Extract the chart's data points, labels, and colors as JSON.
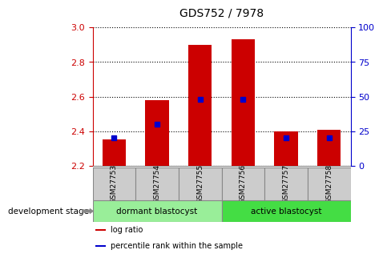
{
  "title": "GDS752 / 7978",
  "samples": [
    "GSM27753",
    "GSM27754",
    "GSM27755",
    "GSM27756",
    "GSM27757",
    "GSM27758"
  ],
  "log_ratios": [
    2.352,
    2.578,
    2.9,
    2.93,
    2.397,
    2.41
  ],
  "percentile_ranks": [
    20,
    30,
    48,
    48,
    20,
    20
  ],
  "ymin": 2.2,
  "ymax": 3.0,
  "yticks_left": [
    2.2,
    2.4,
    2.6,
    2.8,
    3.0
  ],
  "yticks_right": [
    0,
    25,
    50,
    75,
    100
  ],
  "bar_color": "#cc0000",
  "blue_color": "#0000cc",
  "bar_width": 0.55,
  "groups": [
    {
      "label": "dormant blastocyst",
      "samples": [
        0,
        1,
        2
      ],
      "color": "#99ee99"
    },
    {
      "label": "active blastocyst",
      "samples": [
        3,
        4,
        5
      ],
      "color": "#44dd44"
    }
  ],
  "group_label": "development stage",
  "legend_items": [
    {
      "color": "#cc0000",
      "label": "log ratio"
    },
    {
      "color": "#0000cc",
      "label": "percentile rank within the sample"
    }
  ],
  "tick_color_left": "#cc0000",
  "tick_color_right": "#0000cc",
  "sample_box_color": "#cccccc",
  "plot_bg": "#ffffff",
  "border_color": "#888888"
}
